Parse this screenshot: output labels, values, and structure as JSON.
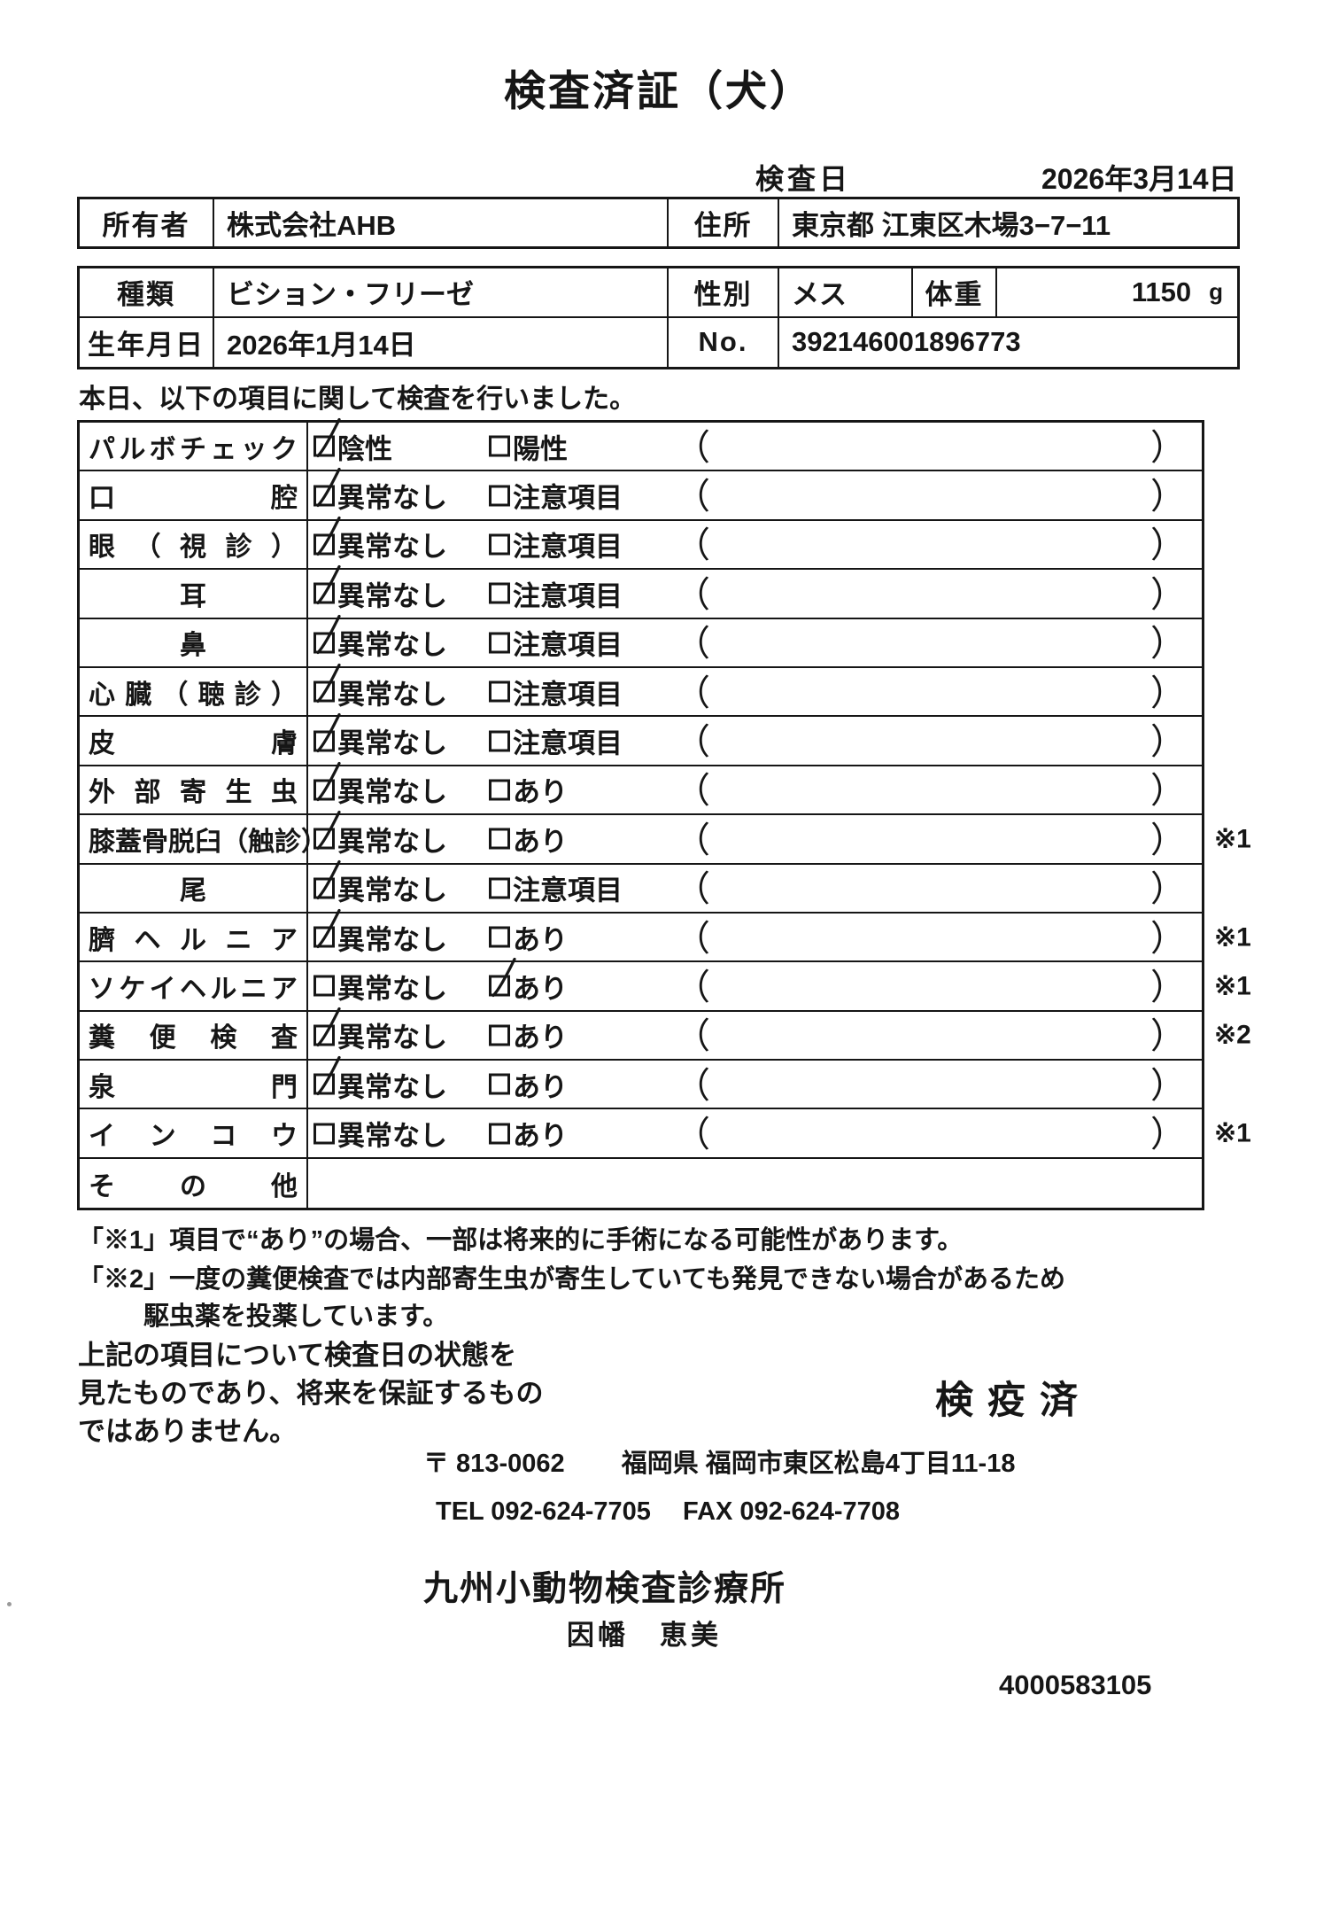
{
  "title": "検査済証（犬）",
  "inspection_date": {
    "label": "検査日",
    "value": "2026年3月14日"
  },
  "owner": {
    "label": "所有者",
    "value": "株式会社AHB"
  },
  "address": {
    "label": "住所",
    "value": "東京都 江東区木場3−7−11"
  },
  "breed": {
    "label": "種類",
    "value": "ビション・フリーゼ"
  },
  "sex": {
    "label": "性別",
    "value": "メス"
  },
  "weight": {
    "label": "体重",
    "value": "1150",
    "unit": "g"
  },
  "birth": {
    "label": "生年月日",
    "value": "2026年1月14日"
  },
  "number": {
    "label": "No.",
    "value": "392146001896773"
  },
  "intro": "本日、以下の項目に関して検査を行いました。",
  "table": {
    "paren_open": "（",
    "paren_close": "）",
    "rows": [
      {
        "label": "パルボチェック",
        "align": "justify",
        "opt1": {
          "label": "陰性",
          "checked": true
        },
        "opt2": {
          "label": "陽性",
          "checked": false
        },
        "note": ""
      },
      {
        "label": "口腔",
        "align": "justify",
        "opt1": {
          "label": "異常なし",
          "checked": true
        },
        "opt2": {
          "label": "注意項目",
          "checked": false
        },
        "note": ""
      },
      {
        "label": "眼（視診）",
        "align": "justify",
        "opt1": {
          "label": "異常なし",
          "checked": true
        },
        "opt2": {
          "label": "注意項目",
          "checked": false
        },
        "note": ""
      },
      {
        "label": "耳",
        "align": "center",
        "opt1": {
          "label": "異常なし",
          "checked": true
        },
        "opt2": {
          "label": "注意項目",
          "checked": false
        },
        "note": ""
      },
      {
        "label": "鼻",
        "align": "center",
        "opt1": {
          "label": "異常なし",
          "checked": true
        },
        "opt2": {
          "label": "注意項目",
          "checked": false
        },
        "note": ""
      },
      {
        "label": "心臓（聴診）",
        "align": "justify",
        "opt1": {
          "label": "異常なし",
          "checked": true
        },
        "opt2": {
          "label": "注意項目",
          "checked": false
        },
        "note": ""
      },
      {
        "label": "皮膚",
        "align": "justify",
        "opt1": {
          "label": "異常なし",
          "checked": true
        },
        "opt2": {
          "label": "注意項目",
          "checked": false
        },
        "note": ""
      },
      {
        "label": "外部寄生虫",
        "align": "justify",
        "opt1": {
          "label": "異常なし",
          "checked": true
        },
        "opt2": {
          "label": "あり",
          "checked": false
        },
        "note": ""
      },
      {
        "label": "膝蓋骨脱臼（触診）",
        "align": "justify",
        "opt1": {
          "label": "異常なし",
          "checked": true
        },
        "opt2": {
          "label": "あり",
          "checked": false
        },
        "note": "※1"
      },
      {
        "label": "尾",
        "align": "center",
        "opt1": {
          "label": "異常なし",
          "checked": true
        },
        "opt2": {
          "label": "注意項目",
          "checked": false
        },
        "note": ""
      },
      {
        "label": "臍ヘルニア",
        "align": "justify",
        "opt1": {
          "label": "異常なし",
          "checked": true
        },
        "opt2": {
          "label": "あり",
          "checked": false
        },
        "note": "※1"
      },
      {
        "label": "ソケイヘルニア",
        "align": "justify",
        "opt1": {
          "label": "異常なし",
          "checked": false
        },
        "opt2": {
          "label": "あり",
          "checked": true
        },
        "note": "※1"
      },
      {
        "label": "糞便検査",
        "align": "justify",
        "opt1": {
          "label": "異常なし",
          "checked": true
        },
        "opt2": {
          "label": "あり",
          "checked": false
        },
        "note": "※2"
      },
      {
        "label": "泉門",
        "align": "justify",
        "opt1": {
          "label": "異常なし",
          "checked": true
        },
        "opt2": {
          "label": "あり",
          "checked": false
        },
        "note": ""
      },
      {
        "label": "インコウ",
        "align": "justify",
        "opt1": {
          "label": "異常なし",
          "checked": false
        },
        "opt2": {
          "label": "あり",
          "checked": false
        },
        "note": "※1"
      },
      {
        "label": "その他",
        "align": "justify",
        "empty": true,
        "note": ""
      }
    ]
  },
  "footnotes": [
    "「※1」項目で“あり”の場合、一部は将来的に手術になる可能性があります。",
    "「※2」一度の糞便検査では内部寄生虫が寄生していても発見できない場合があるため",
    "駆虫薬を投薬しています。"
  ],
  "disclaimer": [
    "上記の項目について検査日の状態を",
    "見たものであり、将来を保証するもの",
    "ではありません。"
  ],
  "quarantine_stamp": "検疫済",
  "clinic": {
    "postal": "〒 813-0062",
    "address": "福岡県 福岡市東区松島4丁目11-18",
    "tel": "TEL 092-624-7705",
    "fax": "FAX 092-624-7708",
    "name": "九州小動物検査診療所",
    "inspector": "因幡　恵美"
  },
  "serial": "4000583105"
}
